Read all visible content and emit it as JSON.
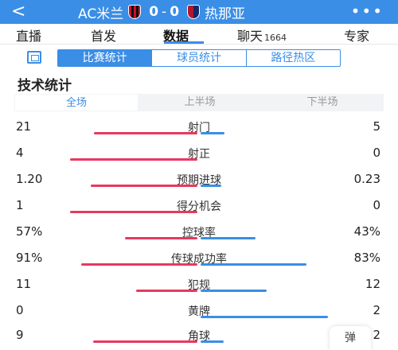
{
  "header": {
    "back_icon": "chevron-left-icon",
    "home_team": "AC米兰",
    "home_score": "0",
    "separator": "-",
    "away_score": "0",
    "away_team": "热那亚",
    "more_icon": "more-dots-icon"
  },
  "tabs": [
    {
      "label": "直播"
    },
    {
      "label": "首发"
    },
    {
      "label": "数据"
    },
    {
      "label": "聊天",
      "badge": "1664"
    },
    {
      "label": "专家"
    }
  ],
  "segments": [
    "比赛统计",
    "球员统计",
    "路径热区"
  ],
  "section_title": "技术统计",
  "periods": [
    "全场",
    "上半场",
    "下半场"
  ],
  "colors": {
    "home": "#e8385f",
    "away": "#3a8ee6",
    "accent": "#3a8ee6"
  },
  "stats": [
    {
      "label": "射门",
      "home": "21",
      "away": "5",
      "home_share": 0.81,
      "away_share": 0.19
    },
    {
      "label": "射正",
      "home": "4",
      "away": "0",
      "home_share": 1.0,
      "away_share": 0.0
    },
    {
      "label": "预期进球",
      "home": "1.20",
      "away": "0.23",
      "home_share": 0.84,
      "away_share": 0.16
    },
    {
      "label": "得分机会",
      "home": "1",
      "away": "0",
      "home_share": 1.0,
      "away_share": 0.0
    },
    {
      "label": "控球率",
      "home": "57%",
      "away": "43%",
      "home_share": 0.57,
      "away_share": 0.43
    },
    {
      "label": "传球成功率",
      "home": "91%",
      "away": "83%",
      "home_share": 0.91,
      "away_share": 0.83
    },
    {
      "label": "犯规",
      "home": "11",
      "away": "12",
      "home_share": 0.48,
      "away_share": 0.52
    },
    {
      "label": "黄牌",
      "home": "0",
      "away": "2",
      "home_share": 0.0,
      "away_share": 1.0
    },
    {
      "label": "角球",
      "home": "9",
      "away": "2",
      "home_share": 0.82,
      "away_share": 0.18
    }
  ],
  "danmu_label": "弹"
}
